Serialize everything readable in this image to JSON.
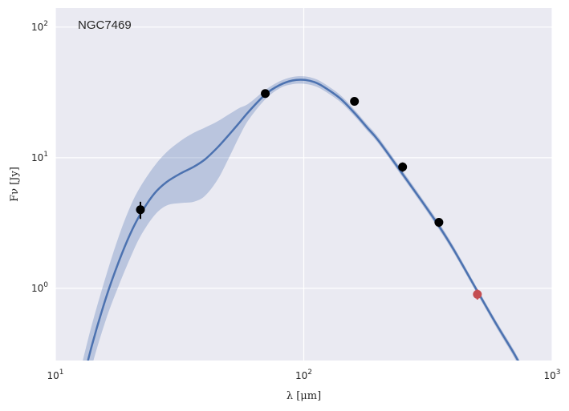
{
  "chart_data": {
    "type": "line",
    "x_scale": "log",
    "y_scale": "log",
    "xlim": [
      10,
      1000
    ],
    "ylim": [
      0.28,
      140
    ],
    "grid": true,
    "background_color": "#EAEAF2",
    "grid_color": "#FFFFFF",
    "xlabel": "λ [μm]",
    "ylabel": "Fν [Jy]",
    "annotation": "NGC7469",
    "x_ticks": [
      {
        "value": 10,
        "base": "10",
        "exp": "1"
      },
      {
        "value": 100,
        "base": "10",
        "exp": "2"
      },
      {
        "value": 1000,
        "base": "10",
        "exp": "3"
      }
    ],
    "y_ticks": [
      {
        "value": 1,
        "base": "10",
        "exp": "0"
      },
      {
        "value": 10,
        "base": "10",
        "exp": "1"
      },
      {
        "value": 100,
        "base": "10",
        "exp": "2"
      }
    ],
    "model": {
      "color": "#4C72B0",
      "band_color": "#4C72B0",
      "x": [
        12.5,
        14,
        16,
        18,
        20,
        22,
        25,
        28,
        32,
        36,
        40,
        45,
        50,
        55,
        60,
        70,
        80,
        90,
        100,
        110,
        120,
        140,
        160,
        180,
        200,
        250,
        300,
        350,
        400,
        500,
        600,
        700,
        780
      ],
      "y": [
        0.15,
        0.36,
        0.85,
        1.6,
        2.6,
        3.7,
        5.3,
        6.5,
        7.6,
        8.5,
        9.7,
        12.0,
        15.0,
        18.5,
        22.5,
        30.5,
        36.0,
        39.0,
        39.5,
        38.0,
        35.0,
        28.5,
        22.0,
        17.0,
        13.5,
        7.5,
        4.6,
        3.0,
        2.0,
        0.95,
        0.52,
        0.32,
        0.22
      ],
      "y_lower": [
        0.1,
        0.25,
        0.58,
        1.05,
        1.7,
        2.5,
        3.6,
        4.3,
        4.5,
        4.6,
        5.1,
        6.8,
        10.0,
        14.5,
        19.5,
        28.0,
        34.0,
        36.5,
        36.8,
        35.5,
        32.8,
        26.8,
        20.8,
        16.1,
        12.8,
        7.1,
        4.35,
        2.83,
        1.89,
        0.9,
        0.49,
        0.3,
        0.2
      ],
      "y_upper": [
        0.22,
        0.52,
        1.25,
        2.5,
        4.2,
        6.0,
        8.6,
        11.0,
        13.5,
        15.5,
        17.0,
        19.0,
        21.5,
        24.0,
        26.0,
        33.0,
        38.5,
        41.5,
        42.0,
        40.5,
        37.3,
        30.3,
        23.3,
        18.0,
        14.3,
        7.95,
        4.87,
        3.18,
        2.12,
        1.0,
        0.55,
        0.34,
        0.23
      ]
    },
    "points": [
      {
        "x": 22,
        "y": 4.0,
        "y_err_low": 0.6,
        "y_err_high": 0.6,
        "color": "#000000"
      },
      {
        "x": 70,
        "y": 31.0,
        "y_err_low": 1.5,
        "y_err_high": 1.5,
        "color": "#000000"
      },
      {
        "x": 160,
        "y": 27.0,
        "y_err_low": 1.3,
        "y_err_high": 1.3,
        "color": "#000000"
      },
      {
        "x": 250,
        "y": 8.5,
        "y_err_low": 0.7,
        "y_err_high": 0.7,
        "color": "#000000"
      },
      {
        "x": 350,
        "y": 3.2,
        "y_err_low": 0.25,
        "y_err_high": 0.25,
        "color": "#000000"
      },
      {
        "x": 500,
        "y": 0.9,
        "y_err_low": 0.08,
        "y_err_high": 0.08,
        "color": "#C44E52"
      }
    ]
  }
}
